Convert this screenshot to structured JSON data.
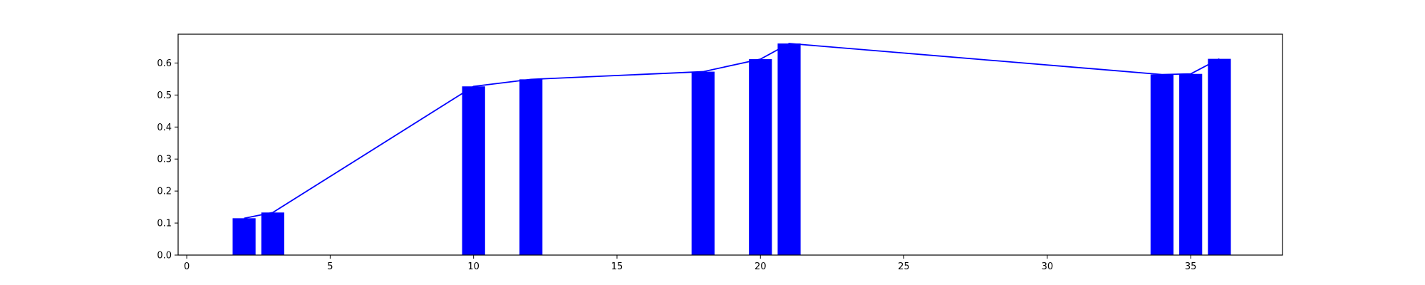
{
  "chart_data": {
    "type": "bar",
    "title": "",
    "xlabel": "",
    "ylabel": "",
    "grid": false,
    "legend": "none",
    "xlim": [
      -0.3,
      38.2
    ],
    "ylim": [
      0.0,
      0.69
    ],
    "xticks": [
      0,
      5,
      10,
      15,
      20,
      25,
      30,
      35
    ],
    "xtick_labels": [
      "0",
      "5",
      "10",
      "15",
      "20",
      "25",
      "30",
      "35"
    ],
    "yticks": [
      0.0,
      0.1,
      0.2,
      0.3,
      0.4,
      0.5,
      0.6
    ],
    "ytick_labels": [
      "0.0",
      "0.1",
      "0.2",
      "0.3",
      "0.4",
      "0.5",
      "0.6"
    ],
    "bar_width": 0.8,
    "x": [
      2,
      3,
      10,
      12,
      18,
      20,
      21,
      34,
      35,
      36
    ],
    "values": [
      0.115,
      0.133,
      0.527,
      0.549,
      0.573,
      0.612,
      0.661,
      0.564,
      0.566,
      0.613
    ],
    "line": {
      "x": [
        2,
        3,
        10,
        12,
        18,
        20,
        21,
        34,
        35,
        36
      ],
      "values": [
        0.115,
        0.133,
        0.527,
        0.549,
        0.573,
        0.612,
        0.661,
        0.564,
        0.566,
        0.613
      ]
    },
    "colors": {
      "bar": "#0000ff",
      "line": "#0000ff",
      "axis": "#000000",
      "background": "#ffffff"
    }
  }
}
